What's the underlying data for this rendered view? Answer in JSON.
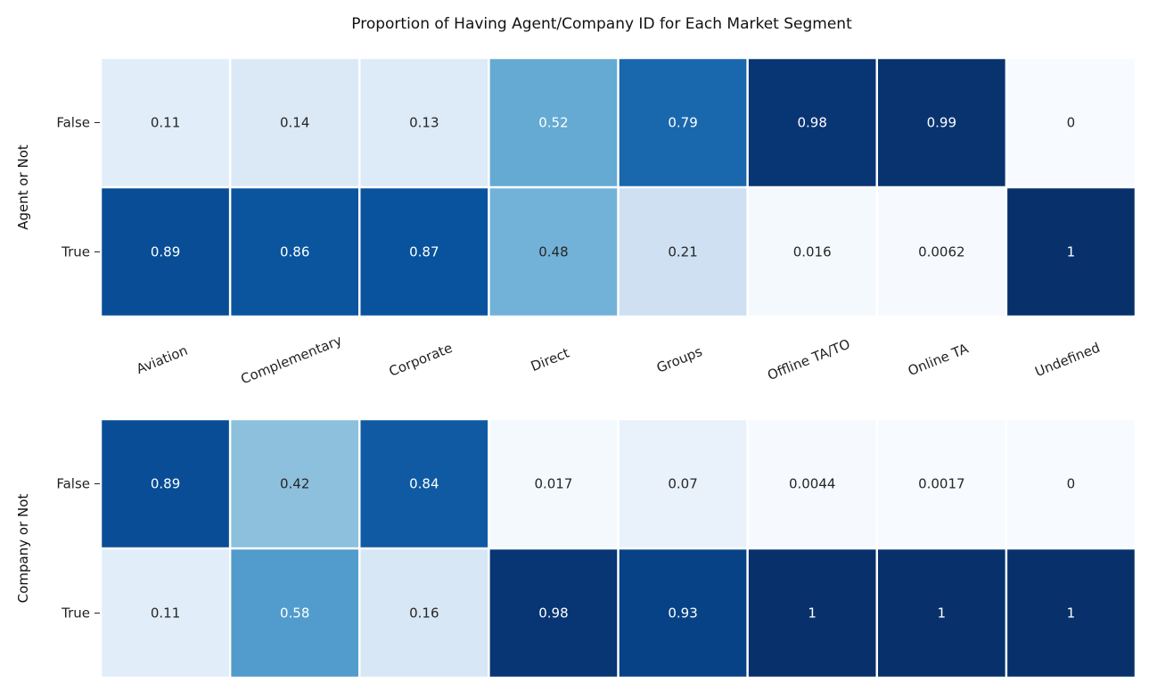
{
  "chart_data": {
    "type": "heatmap",
    "title": "Proportion of Having Agent/Company ID for Each Market Segment",
    "categories": [
      "Aviation",
      "Complementary",
      "Corporate",
      "Direct",
      "Groups",
      "Offline TA/TO",
      "Online TA",
      "Undefined"
    ],
    "colormap": "Blues",
    "vmin": 0,
    "vmax": 1,
    "panels": [
      {
        "ylabel": "Agent or Not",
        "rows": [
          "False",
          "True"
        ],
        "values": [
          [
            0.11,
            0.14,
            0.13,
            0.52,
            0.79,
            0.98,
            0.99,
            0
          ],
          [
            0.89,
            0.86,
            0.87,
            0.48,
            0.21,
            0.016,
            0.0062,
            1
          ]
        ],
        "labels": [
          [
            "0.11",
            "0.14",
            "0.13",
            "0.52",
            "0.79",
            "0.98",
            "0.99",
            "0"
          ],
          [
            "0.89",
            "0.86",
            "0.87",
            "0.48",
            "0.21",
            "0.016",
            "0.0062",
            "1"
          ]
        ]
      },
      {
        "ylabel": "Company or Not",
        "rows": [
          "False",
          "True"
        ],
        "values": [
          [
            0.89,
            0.42,
            0.84,
            0.017,
            0.07,
            0.0044,
            0.0017,
            0
          ],
          [
            0.11,
            0.58,
            0.16,
            0.98,
            0.93,
            1,
            1,
            1
          ]
        ],
        "labels": [
          [
            "0.89",
            "0.42",
            "0.84",
            "0.017",
            "0.07",
            "0.0044",
            "0.0017",
            "0"
          ],
          [
            "0.11",
            "0.58",
            "0.16",
            "0.98",
            "0.93",
            "1",
            "1",
            "1"
          ]
        ]
      }
    ]
  }
}
